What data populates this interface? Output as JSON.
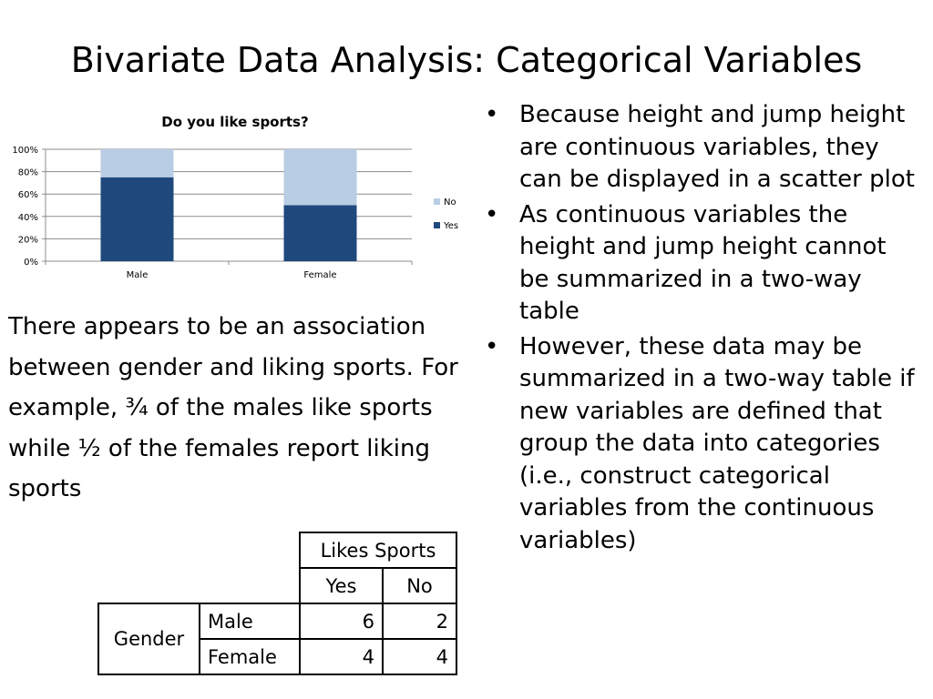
{
  "slide": {
    "title": "Bivariate Data Analysis: Categorical Variables"
  },
  "chart_data": {
    "type": "bar",
    "stacked": true,
    "percent": true,
    "title": "Do you like sports?",
    "categories": [
      "Male",
      "Female"
    ],
    "series": [
      {
        "name": "Yes",
        "values": [
          75,
          50
        ],
        "color": "#1f497d"
      },
      {
        "name": "No",
        "values": [
          25,
          50
        ],
        "color": "#b9cde5"
      }
    ],
    "ylim": [
      0,
      100
    ],
    "yticks": [
      "0%",
      "20%",
      "40%",
      "60%",
      "80%",
      "100%"
    ],
    "grid": true,
    "legend_position": "right"
  },
  "paragraph": "There appears to be an association between gender and liking sports.  For example, ¾ of the males like sports while ½ of the females report liking sports",
  "bullets": [
    "Because height and jump height are continuous variables, they can be displayed in a scatter plot",
    "As continuous variables the height and jump height cannot be summarized in a two-way table",
    "However, these data may be summarized in a two-way table if new variables are defined that group the data into categories (i.e., construct categorical variables from the continuous variables)"
  ],
  "bullet_symbol": "•",
  "table": {
    "column_header": "Likes Sports",
    "column_labels": [
      "Yes",
      "No"
    ],
    "row_header": "Gender",
    "rows": [
      {
        "label": "Male",
        "yes": "6",
        "no": "2"
      },
      {
        "label": "Female",
        "yes": "4",
        "no": "4"
      }
    ]
  }
}
